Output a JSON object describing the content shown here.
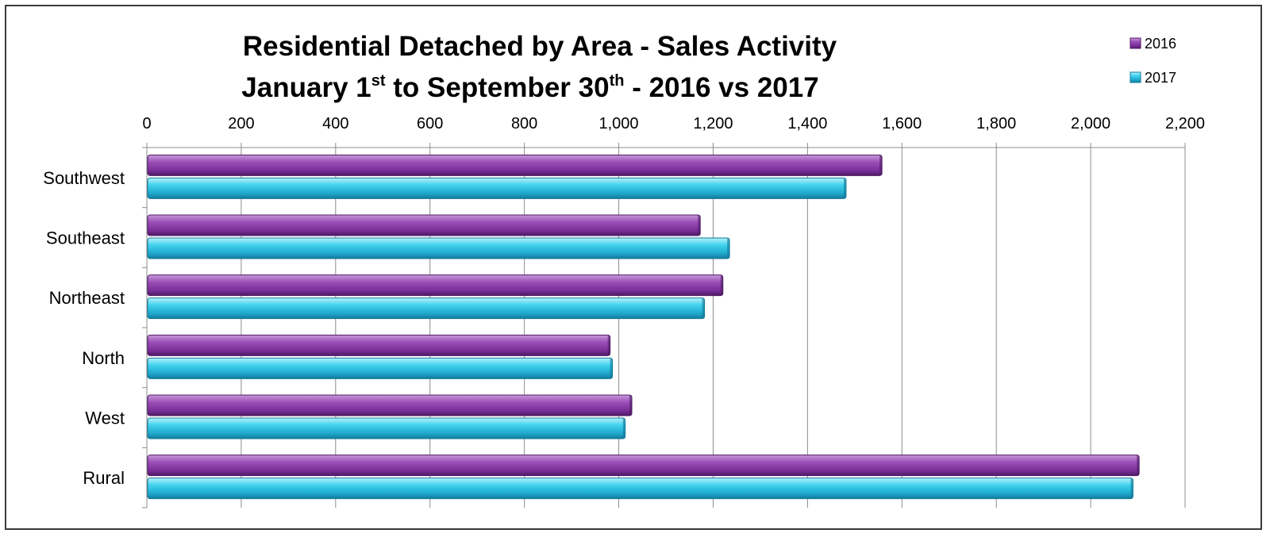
{
  "chart_data": {
    "type": "bar",
    "orientation": "horizontal",
    "title_line1": "Residential Detached by Area - Sales Activity",
    "title_line2": {
      "part1": "January 1",
      "sup1": "st",
      "part2": " to September 30",
      "sup2": "th",
      "part3": " - 2016 vs 2017"
    },
    "categories": [
      "Southwest",
      "Southeast",
      "Northeast",
      "North",
      "West",
      "Rural"
    ],
    "series": [
      {
        "name": "2016",
        "values": [
          1556,
          1171,
          1219,
          980,
          1026,
          2101
        ],
        "color": "#8a3fa6"
      },
      {
        "name": "2017",
        "values": [
          1480,
          1233,
          1180,
          985,
          1012,
          2088
        ],
        "color": "#2cc4e4"
      }
    ],
    "xlim": [
      0,
      2200
    ],
    "xticks": [
      "0",
      "200",
      "400",
      "600",
      "800",
      "1,000",
      "1,200",
      "1,400",
      "1,600",
      "1,800",
      "2,000",
      "2,200"
    ],
    "xtick_values": [
      0,
      200,
      400,
      600,
      800,
      1000,
      1200,
      1400,
      1600,
      1800,
      2000,
      2200
    ],
    "grid": "vertical",
    "legend_position": "top-right"
  }
}
